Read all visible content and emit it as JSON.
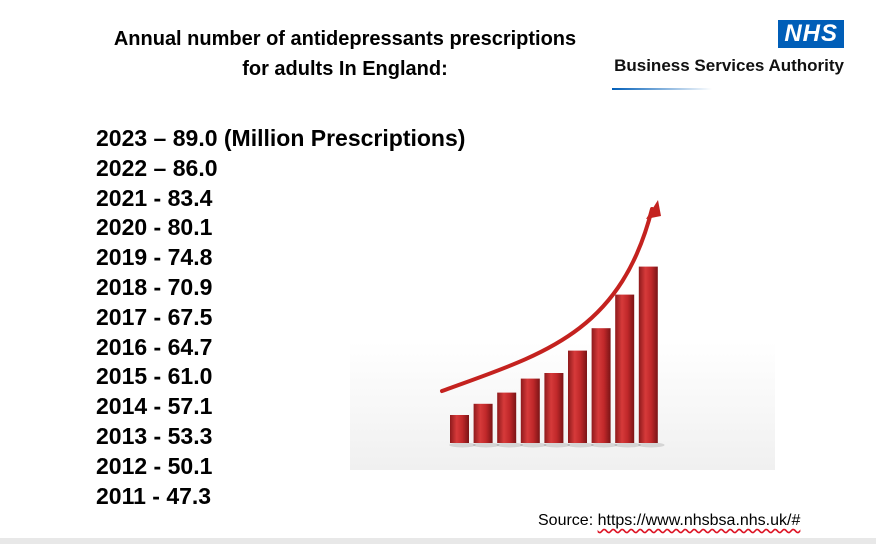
{
  "title_line1": "Annual number of antidepressants prescriptions",
  "title_line2": "for adults In England:",
  "logo": {
    "badge": "NHS",
    "org_name": "Business Services Authority"
  },
  "source": {
    "label": "Source:",
    "url": "https://www.nhsbsa.nhs.uk/#"
  },
  "colors": {
    "bar": "#c0282a",
    "bar_dark": "#8e1a1c",
    "arrow": "#c4221f",
    "nhs_blue": "#005eb8"
  },
  "chart_data": {
    "type": "bar",
    "unit": "(Million Prescriptions)",
    "categories": [
      "2023",
      "2022",
      "2021",
      "2020",
      "2019",
      "2018",
      "2017",
      "2016",
      "2015",
      "2014",
      "2013",
      "2012",
      "2011"
    ],
    "values": [
      89.0,
      86.0,
      83.4,
      80.1,
      74.8,
      70.9,
      67.5,
      64.7,
      61.0,
      57.1,
      53.3,
      50.1,
      47.3
    ],
    "labels": [
      "2023 – 89.0 (Million Prescriptions)",
      "2022 – 86.0",
      "2021 - 83.4",
      "2020 - 80.1",
      "2019 - 74.8",
      "2018 - 70.9",
      "2017 - 67.5",
      "2016 - 64.7",
      "2015 - 61.0",
      "2014 - 57.1",
      "2013 - 53.3",
      "2012 - 50.1",
      "2011 - 47.3"
    ],
    "illustration": {
      "type": "bar",
      "values": [
        1.0,
        1.4,
        1.8,
        2.3,
        2.5,
        3.3,
        4.1,
        5.3,
        6.3
      ],
      "trend_arrow": true
    }
  }
}
